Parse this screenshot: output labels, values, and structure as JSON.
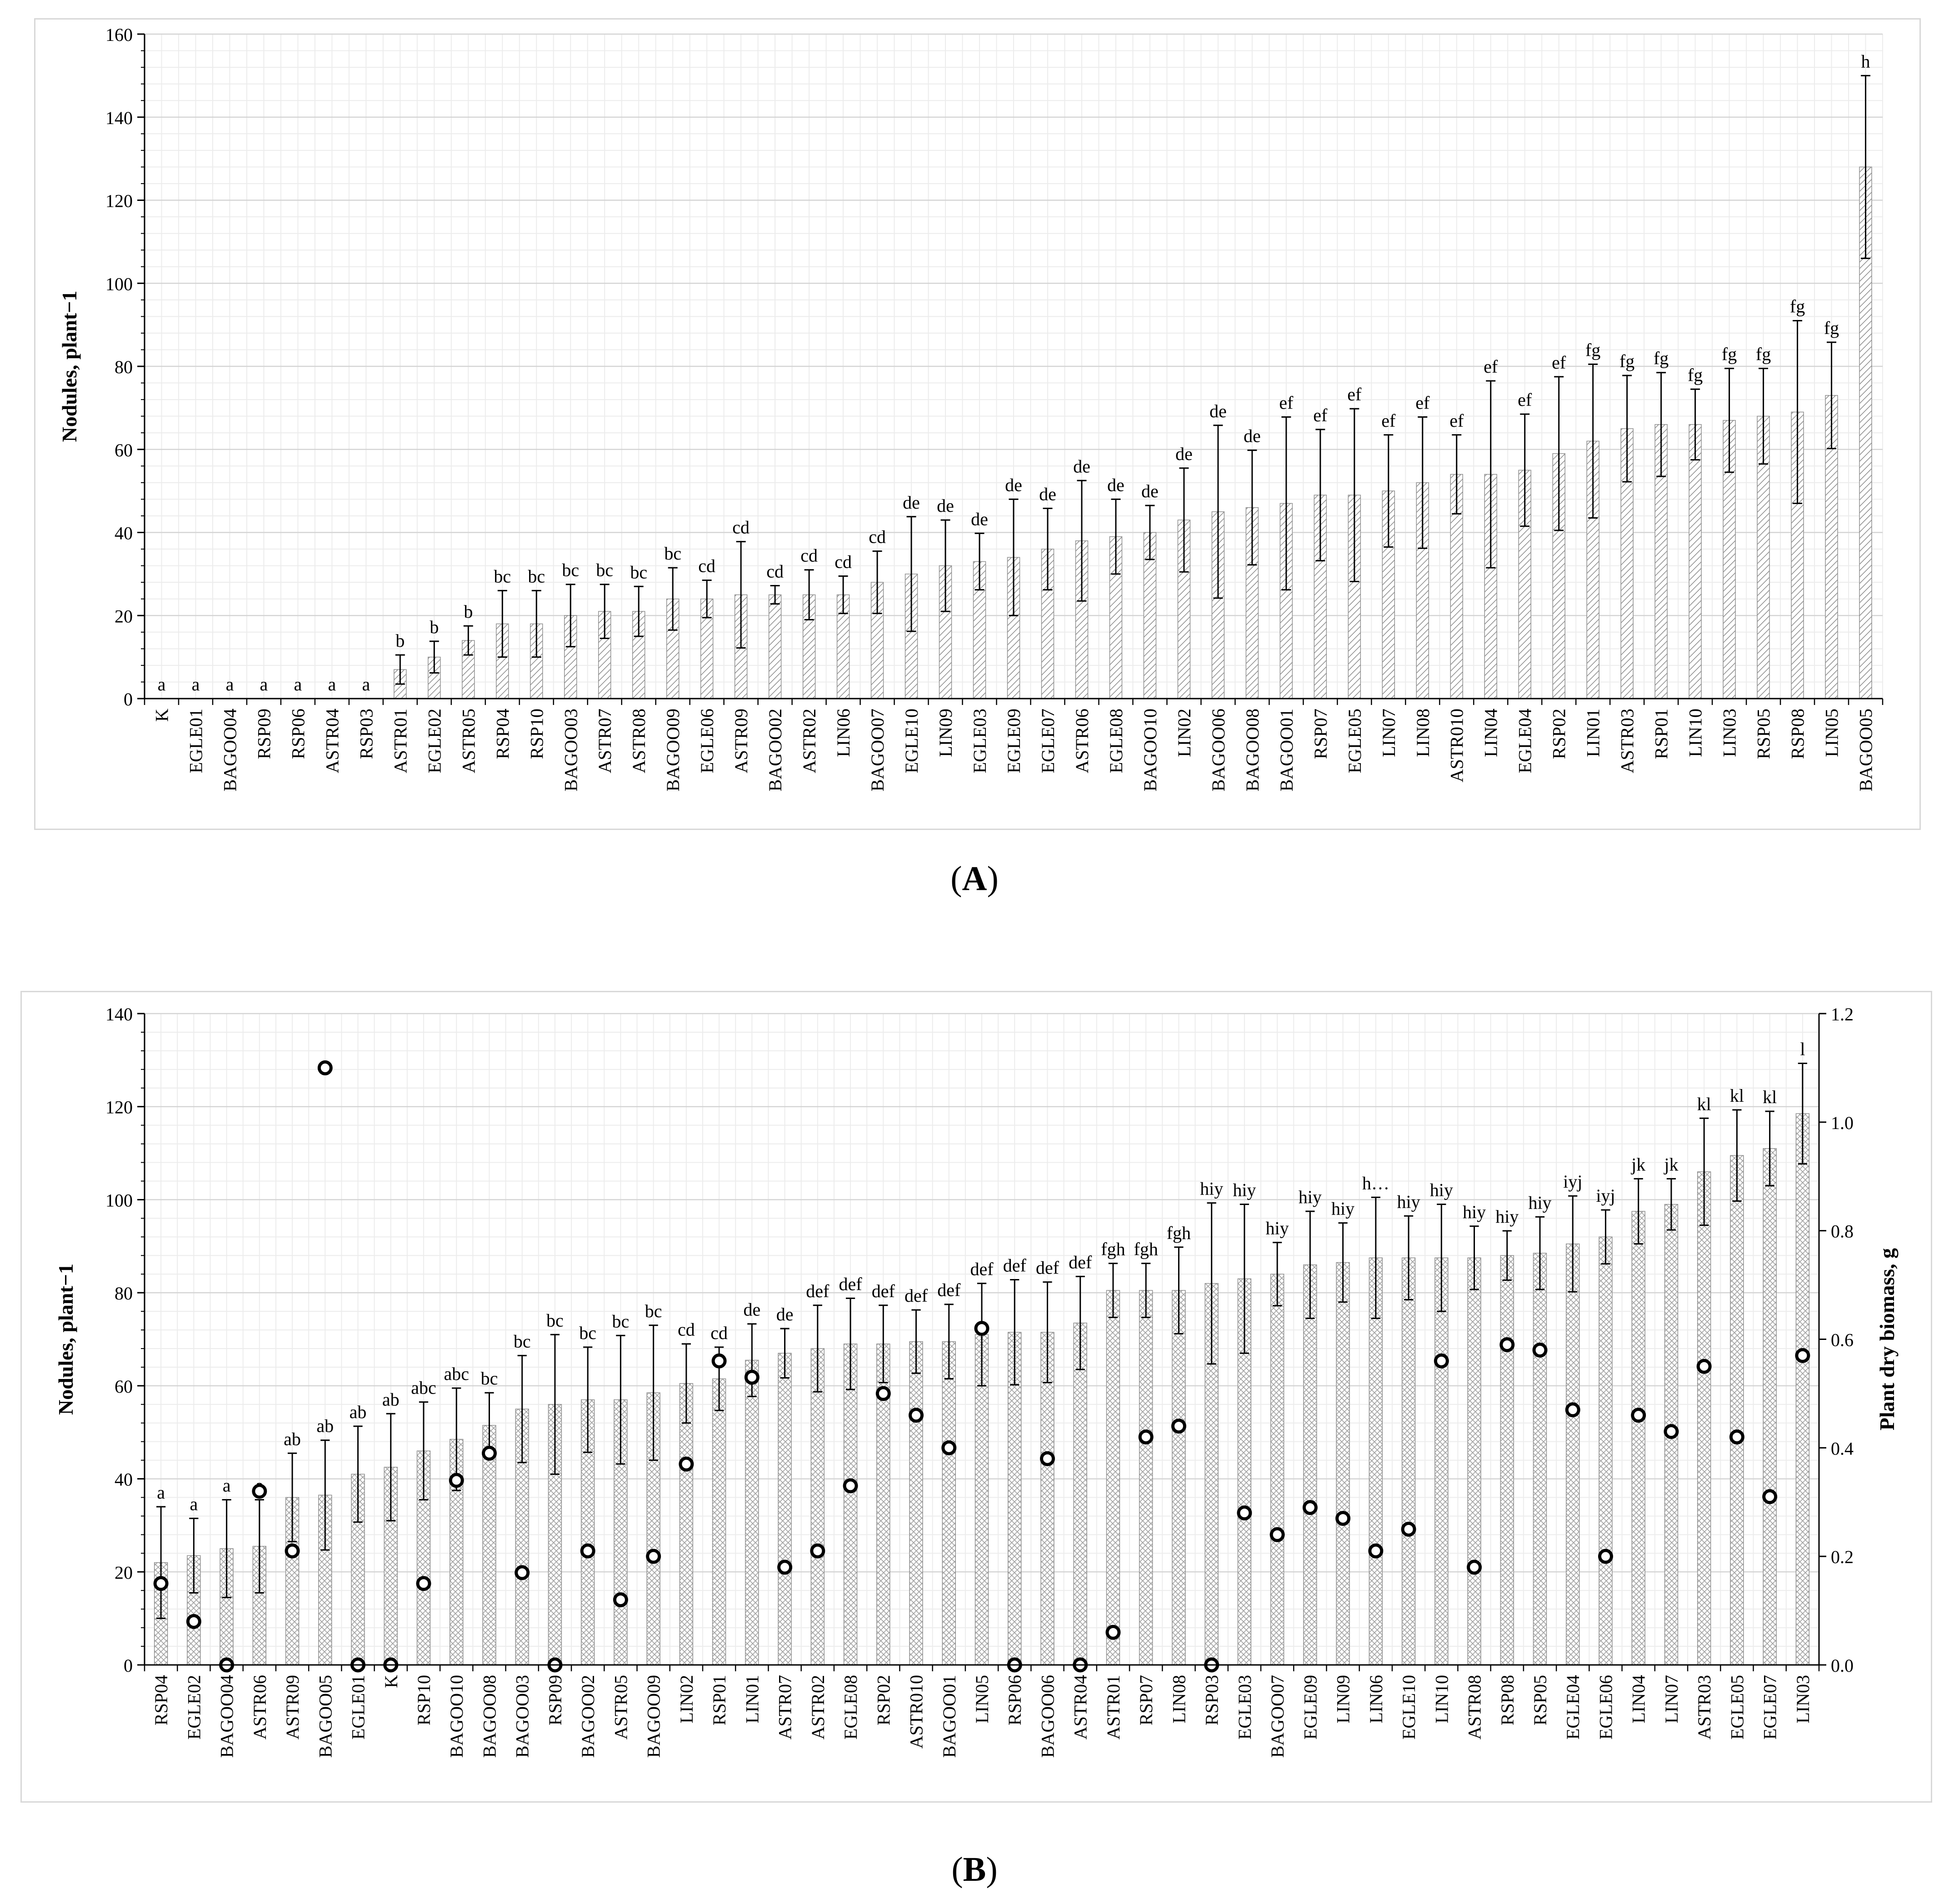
{
  "captions": {
    "a": "A",
    "b": "B"
  },
  "chart_data": [
    {
      "panel": "A",
      "type": "bar",
      "ylabel": "Nodules, plant−1",
      "ylim": [
        0,
        160
      ],
      "yticks": [
        0,
        20,
        40,
        60,
        80,
        100,
        120,
        140,
        160
      ],
      "grid": true,
      "error_bars": true,
      "categories": [
        "K",
        "EGLE01",
        "BAGOO04",
        "RSP09",
        "RSP06",
        "ASTR04",
        "RSP03",
        "ASTR01",
        "EGLE02",
        "ASTR05",
        "RSP04",
        "RSP10",
        "BAGOO03",
        "ASTR07",
        "ASTR08",
        "BAGOO09",
        "EGLE06",
        "ASTR09",
        "BAGOO02",
        "ASTR02",
        "LIN06",
        "BAGOO07",
        "EGLE10",
        "LIN09",
        "EGLE03",
        "EGLE09",
        "EGLE07",
        "ASTR06",
        "EGLE08",
        "BAGOO10",
        "LIN02",
        "BAGOO06",
        "BAGOO08",
        "BAGOO01",
        "RSP07",
        "EGLE05",
        "LIN07",
        "LIN08",
        "ASTR010",
        "LIN04",
        "EGLE04",
        "RSP02",
        "LIN01",
        "ASTR03",
        "RSP01",
        "LIN10",
        "LIN03",
        "RSP05",
        "RSP08",
        "LIN05",
        "BAGOO05"
      ],
      "values": [
        0,
        0,
        0,
        0,
        0,
        0,
        0,
        7,
        10,
        14,
        18,
        18,
        20,
        21,
        21,
        24,
        24,
        25,
        25,
        25,
        25,
        28,
        30,
        32,
        33,
        34,
        36,
        38,
        39,
        40,
        43,
        45,
        46,
        47,
        49,
        49,
        50,
        52,
        54,
        54,
        55,
        59,
        62,
        65,
        66,
        66,
        67,
        68,
        69,
        73,
        128
      ],
      "errors": [
        0,
        0,
        0,
        0,
        0,
        0,
        0,
        3.5,
        3.8,
        3.5,
        8,
        8,
        7.5,
        6.5,
        6,
        7.5,
        4.5,
        12.8,
        2.2,
        6,
        4.5,
        7.5,
        13.8,
        11,
        6.8,
        14,
        9.8,
        14.5,
        9,
        6.5,
        12.5,
        20.8,
        13.8,
        20.8,
        15.8,
        20.8,
        13.5,
        15.8,
        9.5,
        22.5,
        13.5,
        18.5,
        18.5,
        12.8,
        12.5,
        8.5,
        12.5,
        11.5,
        22,
        12.8,
        22
      ],
      "letters": [
        "a",
        "a",
        "a",
        "a",
        "a",
        "a",
        "a",
        "b",
        "b",
        "b",
        "bc",
        "bc",
        "bc",
        "bc",
        "bc",
        "bc",
        "cd",
        "cd",
        "cd",
        "cd",
        "cd",
        "cd",
        "de",
        "de",
        "de",
        "de",
        "de",
        "de",
        "de",
        "de",
        "de",
        "de",
        "de",
        "ef",
        "ef",
        "ef",
        "ef",
        "ef",
        "ef",
        "ef",
        "ef",
        "ef",
        "fg",
        "fg",
        "fg",
        "fg",
        "fg",
        "fg",
        "fg",
        "fg",
        "h"
      ]
    },
    {
      "panel": "B",
      "type": "bar",
      "ylabel": "Nodules, plant−1",
      "y2label": "Plant dry biomass, g",
      "ylim": [
        0,
        140
      ],
      "yticks": [
        0,
        20,
        40,
        60,
        80,
        100,
        120,
        140
      ],
      "y2lim": [
        0,
        1.2
      ],
      "y2ticks": [
        "0.0",
        "0.2",
        "0.4",
        "0.6",
        "0.8",
        "1.0",
        "1.2"
      ],
      "grid": true,
      "error_bars": true,
      "categories": [
        "RSP04",
        "EGLE02",
        "BAGOO04",
        "ASTR06",
        "ASTR09",
        "BAGOO05",
        "EGLE01",
        "K",
        "RSP10",
        "BAGOO10",
        "BAGOO08",
        "BAGOO03",
        "RSP09",
        "BAGOO02",
        "ASTR05",
        "BAGOO09",
        "LIN02",
        "RSP01",
        "LIN01",
        "ASTR07",
        "ASTR02",
        "EGLE08",
        "RSP02",
        "ASTR010",
        "BAGOO01",
        "LIN05",
        "RSP06",
        "BAGOO06",
        "ASTR04",
        "ASTR01",
        "RSP07",
        "LIN08",
        "RSP03",
        "EGLE03",
        "BAGOO07",
        "EGLE09",
        "LIN09",
        "LIN06",
        "EGLE10",
        "LIN10",
        "ASTR08",
        "RSP08",
        "RSP05",
        "EGLE04",
        "EGLE06",
        "LIN04",
        "LIN07",
        "ASTR03",
        "EGLE05",
        "EGLE07",
        "LIN03"
      ],
      "values": [
        22,
        23.5,
        25,
        25.5,
        36,
        36.5,
        41,
        42.5,
        46,
        48.5,
        51.5,
        55,
        56,
        57,
        57,
        58.5,
        60.5,
        61.5,
        65.5,
        67,
        68,
        69,
        69,
        69.5,
        69.5,
        71,
        71.5,
        71.5,
        73.5,
        80.5,
        80.5,
        80.5,
        82,
        83,
        84,
        86,
        86.5,
        87.5,
        87.5,
        87.5,
        87.5,
        88,
        88.5,
        90.5,
        92,
        97.5,
        99,
        106,
        109.5,
        111,
        118.5
      ],
      "errors": [
        12,
        8,
        10.5,
        10,
        9.5,
        11.8,
        10.3,
        11.5,
        10.5,
        11,
        7,
        11.5,
        15,
        11.3,
        13.8,
        14.5,
        8.5,
        6.8,
        7.8,
        5.3,
        9.3,
        9.8,
        8.3,
        6.8,
        8,
        11,
        11.3,
        10.8,
        10,
        5.8,
        5.8,
        9.3,
        17.3,
        16,
        6.8,
        11.5,
        8.5,
        13,
        9,
        11.5,
        6.8,
        5.3,
        7.8,
        10.3,
        5.8,
        7,
        5.5,
        11.5,
        9.8,
        8,
        10.8
      ],
      "letters": [
        "a",
        "a",
        "a",
        "a",
        "ab",
        "ab",
        "ab",
        "ab",
        "abc",
        "abc",
        "bc",
        "bc",
        "bc",
        "bc",
        "bc",
        "bc",
        "cd",
        "cd",
        "de",
        "de",
        "def",
        "def",
        "def",
        "def",
        "def",
        "def",
        "def",
        "def",
        "def",
        "fgh",
        "fgh",
        "fgh",
        "hiy",
        "hiy",
        "hiy",
        "hiy",
        "hiy",
        "h…",
        "hiy",
        "hiy",
        "hiy",
        "hiy",
        "hiy",
        "iyj",
        "iyj",
        "jk",
        "jk",
        "kl",
        "kl",
        "kl",
        "l"
      ],
      "series": [
        {
          "name": "",
          "axis": "y2",
          "marker": "circle",
          "values": [
            0.15,
            0.08,
            0.0,
            0.32,
            0.21,
            1.1,
            0.0,
            0.0,
            0.15,
            0.34,
            0.39,
            0.17,
            0.0,
            0.21,
            0.12,
            0.2,
            0.37,
            0.56,
            0.53,
            0.18,
            0.21,
            0.33,
            0.5,
            0.46,
            0.4,
            0.62,
            0.0,
            0.38,
            0.0,
            0.06,
            0.42,
            0.44,
            0.0,
            0.28,
            0.24,
            0.29,
            0.27,
            0.21,
            0.25,
            0.56,
            0.18,
            0.59,
            0.58,
            0.47,
            0.2,
            0.46,
            0.43,
            0.55,
            0.42,
            0.31,
            0.57
          ]
        }
      ]
    }
  ]
}
